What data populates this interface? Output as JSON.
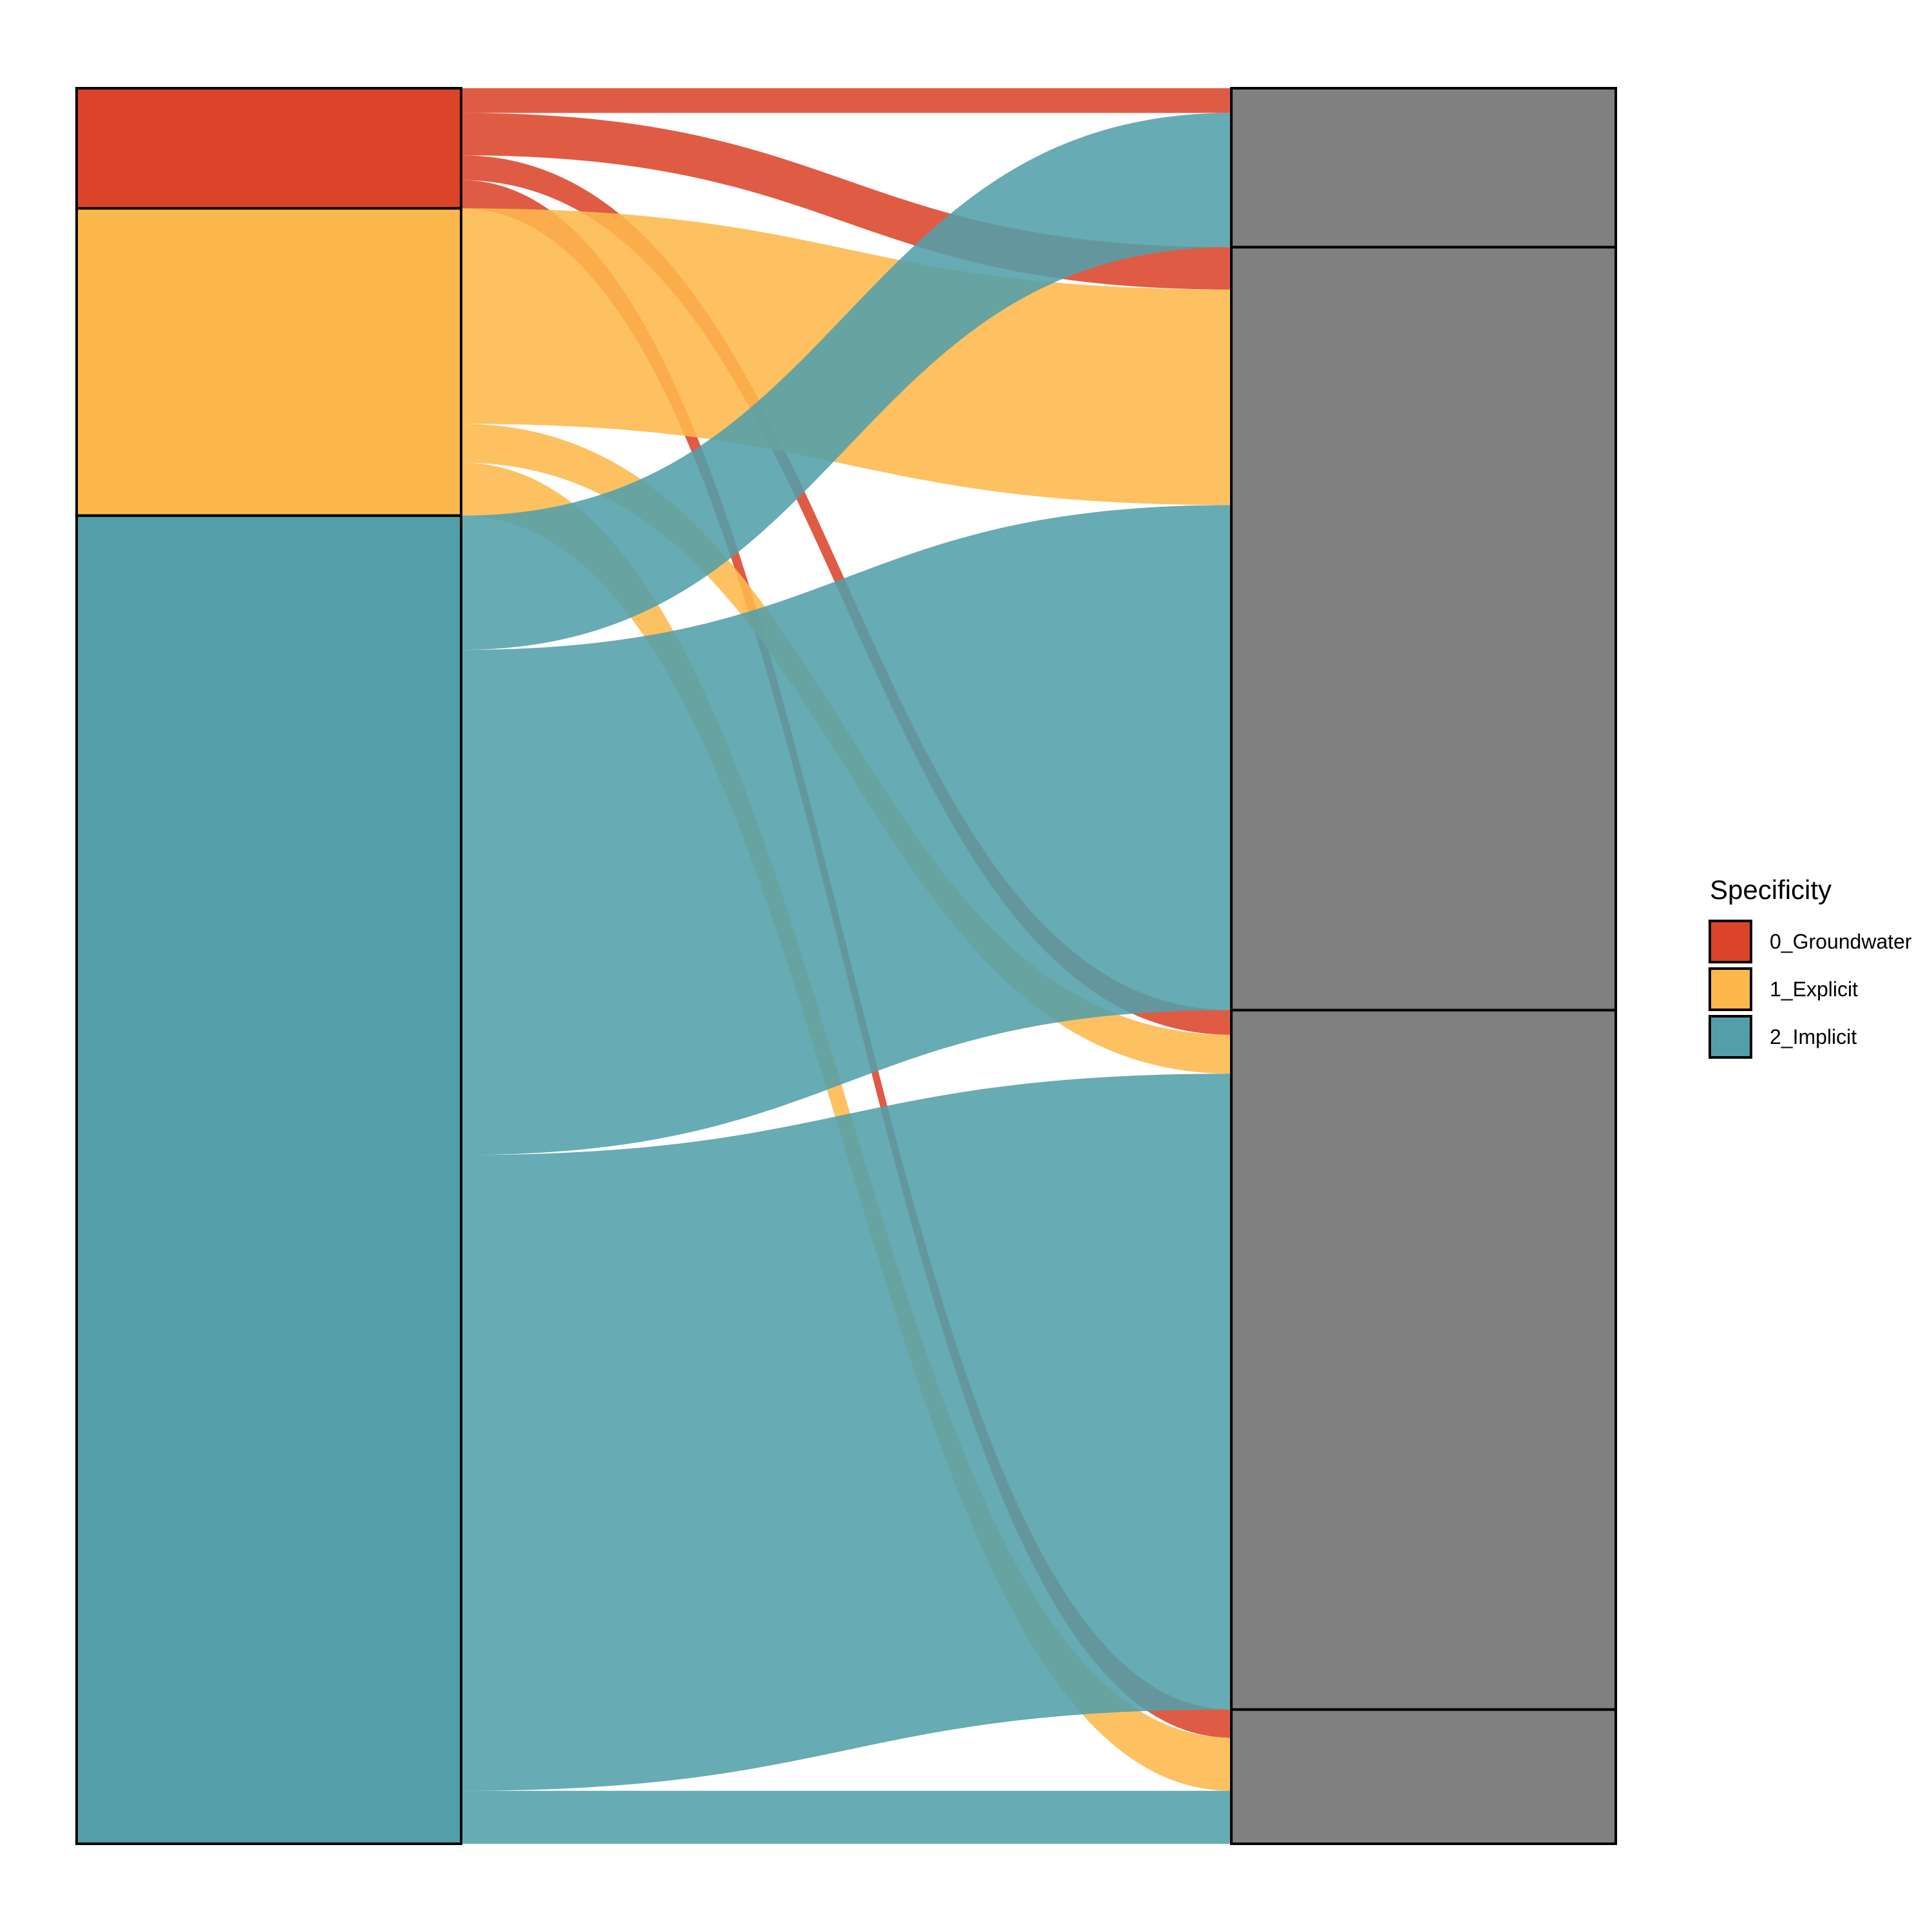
{
  "chart_data": {
    "type": "alluvial",
    "title": "",
    "xlabel": "",
    "ylabel": "",
    "grid": false,
    "legend_position": "right",
    "legend": {
      "title": "Specificity",
      "entries": [
        {
          "name": "0_Groundwater",
          "color": "#DC4429"
        },
        {
          "name": "1_Explicit",
          "color": "#FDB84B"
        },
        {
          "name": "2_Implicit",
          "color": "#529FAA"
        }
      ]
    },
    "left_axis": {
      "strata": [
        {
          "id": "0_Groundwater",
          "total": 34,
          "color": "#DC4429"
        },
        {
          "id": "1_Explicit",
          "total": 87,
          "color": "#FDB84B"
        },
        {
          "id": "2_Implicit",
          "total": 376,
          "color": "#529FAA"
        }
      ]
    },
    "right_axis": {
      "stratum_color": "#808080",
      "strata": [
        {
          "id": "R1",
          "total": 45
        },
        {
          "id": "R2",
          "total": 216
        },
        {
          "id": "R3",
          "total": 198
        },
        {
          "id": "R4",
          "total": 38
        }
      ]
    },
    "flows": [
      {
        "from": "0_Groundwater",
        "to": "R1",
        "value": 7
      },
      {
        "from": "0_Groundwater",
        "to": "R2",
        "value": 12
      },
      {
        "from": "0_Groundwater",
        "to": "R3",
        "value": 7
      },
      {
        "from": "0_Groundwater",
        "to": "R4",
        "value": 8
      },
      {
        "from": "1_Explicit",
        "to": "R2",
        "value": 61
      },
      {
        "from": "1_Explicit",
        "to": "R3",
        "value": 11
      },
      {
        "from": "1_Explicit",
        "to": "R4",
        "value": 15
      },
      {
        "from": "2_Implicit",
        "to": "R1",
        "value": 38
      },
      {
        "from": "2_Implicit",
        "to": "R2",
        "value": 143
      },
      {
        "from": "2_Implicit",
        "to": "R3",
        "value": 180
      },
      {
        "from": "2_Implicit",
        "to": "R4",
        "value": 15
      }
    ]
  }
}
